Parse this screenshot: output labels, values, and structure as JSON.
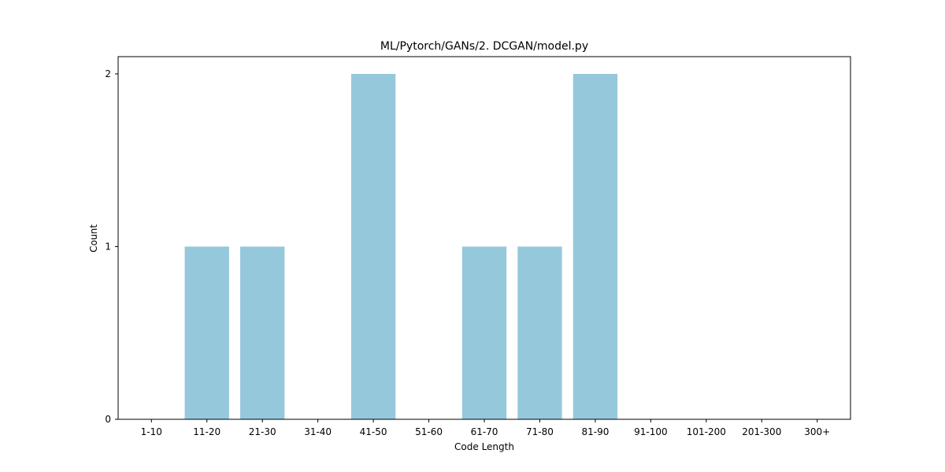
{
  "chart_data": {
    "type": "bar",
    "title": "ML/Pytorch/GANs/2. DCGAN/model.py",
    "xlabel": "Code Length",
    "ylabel": "Count",
    "categories": [
      "1-10",
      "11-20",
      "21-30",
      "31-40",
      "41-50",
      "51-60",
      "61-70",
      "71-80",
      "81-90",
      "91-100",
      "101-200",
      "201-300",
      "300+"
    ],
    "values": [
      0,
      1,
      1,
      0,
      2,
      0,
      1,
      1,
      2,
      0,
      0,
      0,
      0
    ],
    "ylim": [
      0,
      2.1
    ],
    "yticks": [
      0,
      1,
      2
    ],
    "bar_color": "#96c8dc",
    "grid": false,
    "legend": "none"
  }
}
